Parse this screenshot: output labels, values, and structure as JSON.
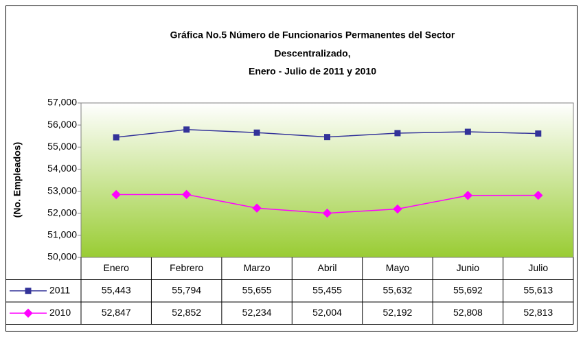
{
  "chart_data": {
    "type": "line",
    "title": [
      "Gráfica No.5 Número de Funcionarios Permanentes del Sector",
      "Descentralizado,",
      "Enero - Julio de 2011 y 2010"
    ],
    "y_label": "(No. Empleados)",
    "categories": [
      "Enero",
      "Febrero",
      "Marzo",
      "Abril",
      "Mayo",
      "Junio",
      "Julio"
    ],
    "series": [
      {
        "name": "2011",
        "color": "#333399",
        "marker": "square",
        "values": [
          55443,
          55794,
          55655,
          55455,
          55632,
          55692,
          55613
        ],
        "value_labels": [
          "55,443",
          "55,794",
          "55,655",
          "55,455",
          "55,632",
          "55,692",
          "55,613"
        ]
      },
      {
        "name": "2010",
        "color": "#ff00ff",
        "marker": "diamond",
        "values": [
          52847,
          52852,
          52234,
          52004,
          52192,
          52808,
          52813
        ],
        "value_labels": [
          "52,847",
          "52,852",
          "52,234",
          "52,004",
          "52,192",
          "52,808",
          "52,813"
        ]
      }
    ],
    "ylim": [
      50000,
      57000
    ],
    "yticks": [
      {
        "value": 50000,
        "label": "50,000"
      },
      {
        "value": 51000,
        "label": "51,000"
      },
      {
        "value": 52000,
        "label": "52,000"
      },
      {
        "value": 53000,
        "label": "53,000"
      },
      {
        "value": 54000,
        "label": "54,000"
      },
      {
        "value": 55000,
        "label": "55,000"
      },
      {
        "value": 56000,
        "label": "56,000"
      },
      {
        "value": 57000,
        "label": "57,000"
      }
    ],
    "grid": false,
    "data_table": true
  }
}
